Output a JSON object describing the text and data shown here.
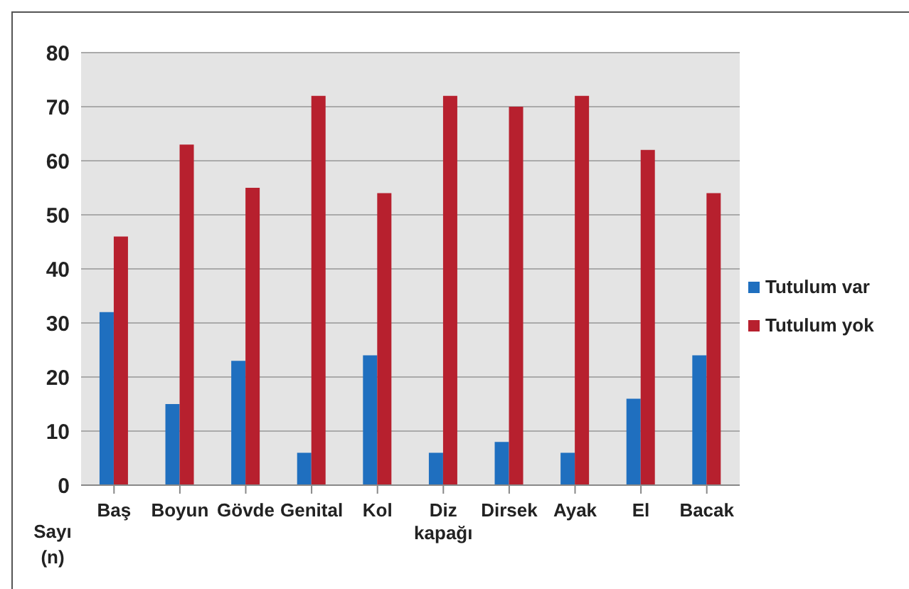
{
  "chart_data": {
    "type": "bar",
    "ylabel": "Sayı (n)",
    "categories": [
      "Baş",
      "Boyun",
      "Gövde",
      "Genital",
      "Kol",
      "Diz kapağı",
      "Dirsek",
      "Ayak",
      "El",
      "Bacak"
    ],
    "series": [
      {
        "name": "Tutulum var",
        "color": "#1f6fbf",
        "values": [
          32,
          15,
          23,
          6,
          24,
          6,
          8,
          6,
          16,
          24
        ]
      },
      {
        "name": "Tutulum yok",
        "color": "#b7202e",
        "values": [
          46,
          63,
          55,
          72,
          54,
          72,
          70,
          72,
          62,
          54
        ]
      }
    ],
    "ylim": [
      0,
      80
    ],
    "yticks": [
      0,
      10,
      20,
      30,
      40,
      50,
      60,
      70,
      80
    ],
    "grid": "y",
    "legend": "right"
  }
}
